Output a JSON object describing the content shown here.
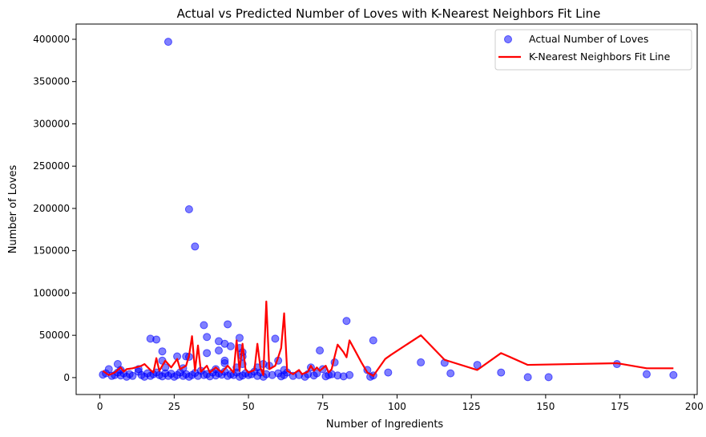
{
  "chart_data": {
    "type": "scatter",
    "title": "Actual vs Predicted Number of Loves with K-Nearest Neighbors Fit Line",
    "xlabel": "Number of Ingredients",
    "ylabel": "Number of Loves",
    "xlim": [
      -8,
      201
    ],
    "ylim": [
      -20000,
      418000
    ],
    "x_ticks": [
      0,
      25,
      50,
      75,
      100,
      125,
      150,
      175,
      200
    ],
    "y_ticks": [
      0,
      50000,
      100000,
      150000,
      200000,
      250000,
      300000,
      350000,
      400000
    ],
    "grid": false,
    "legend_position": "top-right",
    "series": [
      {
        "name": "Actual Number of Loves",
        "kind": "scatter",
        "color": "#0000ff",
        "points": [
          [
            23,
            397000
          ],
          [
            30,
            199000
          ],
          [
            32,
            155000
          ],
          [
            83,
            67000
          ],
          [
            43,
            63000
          ],
          [
            35,
            62000
          ],
          [
            36,
            48000
          ],
          [
            17,
            46000
          ],
          [
            19,
            45000
          ],
          [
            47,
            47000
          ],
          [
            59,
            46000
          ],
          [
            92,
            44000
          ],
          [
            40,
            43000
          ],
          [
            42,
            40000
          ],
          [
            44,
            37000
          ],
          [
            47,
            35000
          ],
          [
            21,
            31000
          ],
          [
            40,
            32000
          ],
          [
            74,
            32000
          ],
          [
            48,
            30000
          ],
          [
            36,
            29000
          ],
          [
            26,
            25000
          ],
          [
            29,
            25000
          ],
          [
            30,
            24500
          ],
          [
            48,
            25000
          ],
          [
            21,
            20000
          ],
          [
            42,
            20000
          ],
          [
            60,
            20000
          ],
          [
            108,
            18000
          ],
          [
            116,
            17500
          ],
          [
            6,
            16000
          ],
          [
            42,
            17000
          ],
          [
            48,
            16000
          ],
          [
            55,
            16000
          ],
          [
            79,
            18000
          ],
          [
            127,
            15000
          ],
          [
            174,
            16000
          ],
          [
            3,
            10000
          ],
          [
            7,
            9000
          ],
          [
            13,
            10000
          ],
          [
            22,
            12000
          ],
          [
            28,
            11000
          ],
          [
            39,
            10000
          ],
          [
            46,
            12000
          ],
          [
            53,
            12000
          ],
          [
            57,
            14000
          ],
          [
            62,
            9000
          ],
          [
            71,
            12000
          ],
          [
            75,
            10000
          ],
          [
            90,
            9000
          ],
          [
            1,
            3500
          ],
          [
            2,
            5000
          ],
          [
            4,
            2000
          ],
          [
            5,
            3000
          ],
          [
            6,
            6000
          ],
          [
            7,
            2500
          ],
          [
            8,
            5000
          ],
          [
            9,
            1000
          ],
          [
            10,
            4000
          ],
          [
            11,
            2000
          ],
          [
            13,
            7000
          ],
          [
            14,
            3000
          ],
          [
            15,
            1000
          ],
          [
            16,
            5000
          ],
          [
            17,
            2000
          ],
          [
            18,
            4000
          ],
          [
            19,
            6000
          ],
          [
            20,
            3000
          ],
          [
            21,
            1500
          ],
          [
            22,
            5000
          ],
          [
            23,
            2000
          ],
          [
            24,
            4500
          ],
          [
            25,
            1000
          ],
          [
            26,
            3000
          ],
          [
            27,
            6000
          ],
          [
            28,
            2000
          ],
          [
            29,
            4000
          ],
          [
            30,
            1000
          ],
          [
            31,
            3000
          ],
          [
            32,
            5500
          ],
          [
            33,
            2000
          ],
          [
            34,
            8000
          ],
          [
            35,
            3000
          ],
          [
            36,
            4000
          ],
          [
            37,
            1500
          ],
          [
            38,
            6000
          ],
          [
            39,
            2500
          ],
          [
            40,
            5000
          ],
          [
            41,
            3500
          ],
          [
            42,
            7000
          ],
          [
            43,
            2000
          ],
          [
            44,
            4000
          ],
          [
            45,
            3000
          ],
          [
            46,
            6000
          ],
          [
            47,
            1000
          ],
          [
            48,
            2500
          ],
          [
            49,
            5000
          ],
          [
            50,
            3000
          ],
          [
            51,
            4000
          ],
          [
            52,
            7000
          ],
          [
            53,
            2000
          ],
          [
            54,
            6000
          ],
          [
            55,
            1000
          ],
          [
            56,
            4000
          ],
          [
            58,
            3000
          ],
          [
            60,
            5000
          ],
          [
            61,
            1500
          ],
          [
            62,
            3000
          ],
          [
            63,
            6000
          ],
          [
            65,
            2000
          ],
          [
            67,
            3000
          ],
          [
            69,
            1000
          ],
          [
            70,
            4000
          ],
          [
            72,
            2500
          ],
          [
            73,
            5000
          ],
          [
            76,
            1500
          ],
          [
            77,
            3000
          ],
          [
            78,
            4000
          ],
          [
            80,
            2500
          ],
          [
            82,
            1500
          ],
          [
            84,
            3000
          ],
          [
            91,
            1000
          ],
          [
            92,
            2500
          ],
          [
            97,
            6000
          ],
          [
            118,
            5000
          ],
          [
            135,
            6000
          ],
          [
            144,
            500
          ],
          [
            151,
            500
          ],
          [
            184,
            4000
          ],
          [
            193,
            3000
          ]
        ]
      },
      {
        "name": "K-Nearest Neighbors Fit Line",
        "kind": "line",
        "color": "#ff0000",
        "points": [
          [
            1,
            8000
          ],
          [
            3,
            3000
          ],
          [
            5,
            6000
          ],
          [
            7,
            12000
          ],
          [
            8,
            7000
          ],
          [
            9,
            10000
          ],
          [
            11,
            11000
          ],
          [
            14,
            14000
          ],
          [
            15,
            16000
          ],
          [
            17,
            9000
          ],
          [
            18,
            6000
          ],
          [
            19,
            23000
          ],
          [
            20,
            8000
          ],
          [
            22,
            20000
          ],
          [
            24,
            12000
          ],
          [
            26,
            22000
          ],
          [
            27,
            10000
          ],
          [
            29,
            14000
          ],
          [
            30,
            26000
          ],
          [
            31,
            49000
          ],
          [
            32,
            8000
          ],
          [
            33,
            38000
          ],
          [
            34,
            7000
          ],
          [
            36,
            14000
          ],
          [
            37,
            6000
          ],
          [
            39,
            12000
          ],
          [
            41,
            6000
          ],
          [
            43,
            14000
          ],
          [
            45,
            6000
          ],
          [
            46,
            44000
          ],
          [
            47,
            8000
          ],
          [
            48,
            40000
          ],
          [
            49,
            10000
          ],
          [
            50,
            6000
          ],
          [
            52,
            9000
          ],
          [
            53,
            40000
          ],
          [
            54,
            12000
          ],
          [
            55,
            3000
          ],
          [
            56,
            90000
          ],
          [
            57,
            10000
          ],
          [
            59,
            14000
          ],
          [
            60,
            24000
          ],
          [
            61,
            35000
          ],
          [
            62,
            76000
          ],
          [
            63,
            8000
          ],
          [
            65,
            4000
          ],
          [
            67,
            9000
          ],
          [
            68,
            4000
          ],
          [
            70,
            7000
          ],
          [
            71,
            14000
          ],
          [
            72,
            8000
          ],
          [
            73,
            12000
          ],
          [
            74,
            8000
          ],
          [
            76,
            14000
          ],
          [
            77,
            6000
          ],
          [
            78,
            10000
          ],
          [
            79,
            25000
          ],
          [
            80,
            39000
          ],
          [
            82,
            30000
          ],
          [
            83,
            24000
          ],
          [
            84,
            44000
          ],
          [
            86,
            31000
          ],
          [
            88,
            18000
          ],
          [
            90,
            6000
          ],
          [
            92,
            2000
          ],
          [
            96,
            22000
          ],
          [
            98,
            27000
          ],
          [
            108,
            50000
          ],
          [
            116,
            21000
          ],
          [
            127,
            9000
          ],
          [
            135,
            29000
          ],
          [
            144,
            15000
          ],
          [
            174,
            17000
          ],
          [
            184,
            11000
          ],
          [
            193,
            11000
          ]
        ]
      }
    ]
  }
}
